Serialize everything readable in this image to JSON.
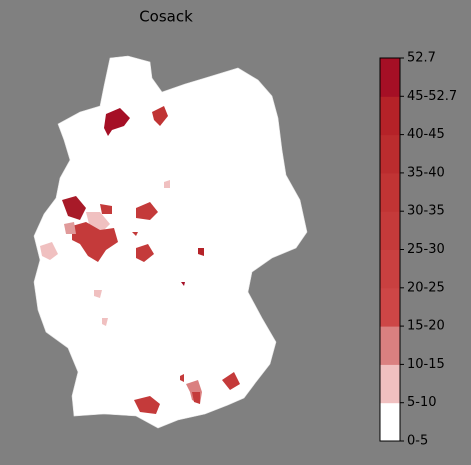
{
  "title": "Cosack",
  "colorbar": {
    "labels": [
      "0-5",
      "5-10",
      "10-15",
      "15-20",
      "20-25",
      "25-30",
      "30-35",
      "35-40",
      "40-45",
      "45-52.7",
      "52.7"
    ],
    "colors": [
      "#ffffff",
      "#f0c0c0",
      "#da8080",
      "#cd4646",
      "#c94040",
      "#c53a3a",
      "#c13434",
      "#bb2c2e",
      "#b52228",
      "#a50f25"
    ]
  }
}
